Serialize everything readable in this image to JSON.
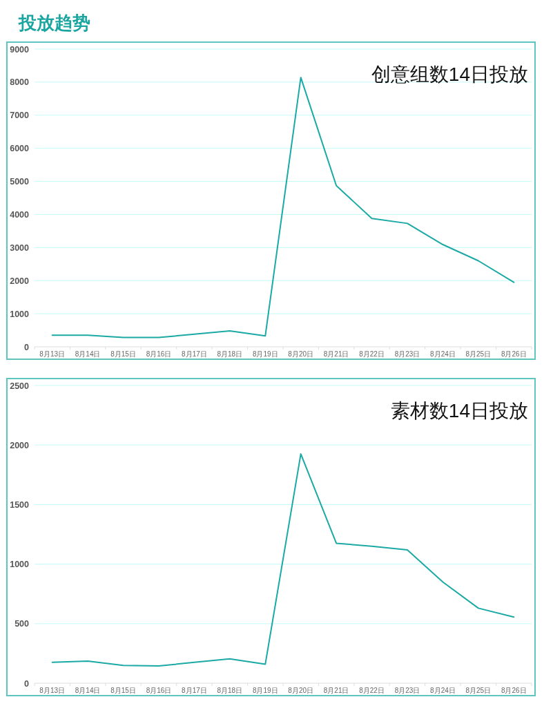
{
  "chart_data": [
    {
      "type": "line",
      "title": "投放趋势",
      "subtitle": "创意组数14日投放",
      "categories": [
        "8月13日",
        "8月14日",
        "8月15日",
        "8月16日",
        "8月17日",
        "8月18日",
        "8月19日",
        "8月20日",
        "8月21日",
        "8月22日",
        "8月23日",
        "8月24日",
        "8月25日",
        "8月26日"
      ],
      "series": [
        {
          "color": "#1aa9a4",
          "values": [
            350,
            350,
            280,
            280,
            380,
            480,
            330,
            8140,
            4870,
            3880,
            3730,
            3090,
            2600,
            1950
          ]
        }
      ],
      "ylim": [
        0,
        9000
      ],
      "yticks": [
        0,
        1000,
        2000,
        3000,
        4000,
        5000,
        6000,
        7000,
        8000,
        9000
      ],
      "grid": "y"
    },
    {
      "type": "line",
      "subtitle": "素材数14日投放",
      "categories": [
        "8月13日",
        "8月14日",
        "8月15日",
        "8月16日",
        "8月17日",
        "8月18日",
        "8月19日",
        "8月20日",
        "8月21日",
        "8月22日",
        "8月23日",
        "8月24日",
        "8月25日",
        "8月26日"
      ],
      "series": [
        {
          "color": "#1aa9a4",
          "values": [
            175,
            185,
            150,
            145,
            175,
            205,
            160,
            1925,
            1175,
            1150,
            1120,
            850,
            630,
            555
          ]
        }
      ],
      "ylim": [
        0,
        2500
      ],
      "yticks": [
        0,
        500,
        1000,
        1500,
        2000,
        2500
      ],
      "grid": "y"
    }
  ]
}
